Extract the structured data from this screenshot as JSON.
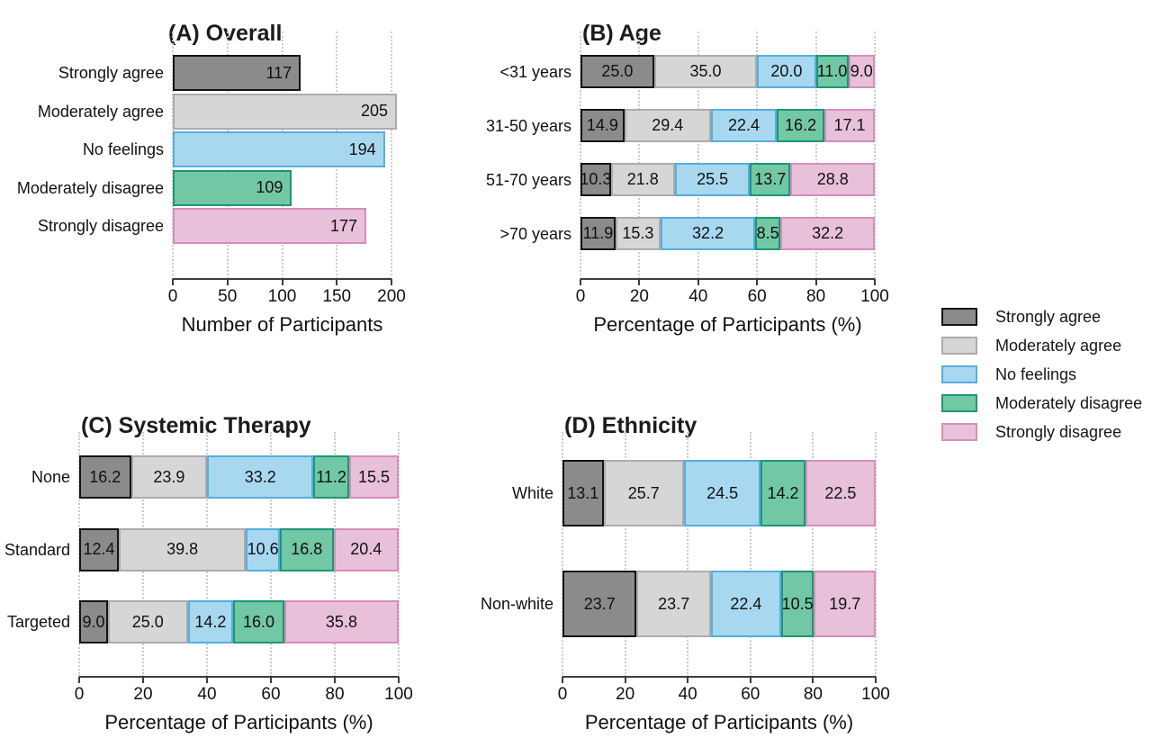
{
  "figure": {
    "background": "#ffffff",
    "levels": [
      {
        "name": "Strongly agree",
        "fill": "#8b8b8b",
        "stroke": "#141414"
      },
      {
        "name": "Moderately agree",
        "fill": "#d6d6d6",
        "stroke": "#ababab"
      },
      {
        "name": "No feelings",
        "fill": "#a8d8f0",
        "stroke": "#55aede"
      },
      {
        "name": "Moderately disagree",
        "fill": "#72c7a5",
        "stroke": "#1d9674"
      },
      {
        "name": "Strongly disagree",
        "fill": "#e8c0d9",
        "stroke": "#d48ebc"
      }
    ],
    "legend": {
      "position": "right",
      "items": [
        "Strongly agree",
        "Moderately agree",
        "No feelings",
        "Moderately disagree",
        "Strongly disagree"
      ]
    }
  },
  "chart_data": [
    {
      "id": "A",
      "type": "bar",
      "title": "(A) Overall",
      "xlabel": "Number of Participants",
      "categories": [
        "Strongly agree",
        "Moderately agree",
        "No feelings",
        "Moderately disagree",
        "Strongly disagree"
      ],
      "values": [
        117,
        205,
        194,
        109,
        177
      ],
      "value_labels": [
        "117",
        "205",
        "194",
        "109",
        "177"
      ],
      "xlim": [
        0,
        200
      ],
      "ticks": [
        0,
        50,
        100,
        150,
        200
      ],
      "grid": "dotted-vertical",
      "value_label_position": "inside-end"
    },
    {
      "id": "B",
      "type": "stacked_bar",
      "title": "(B) Age",
      "xlabel": "Percentage of Participants (%)",
      "categories": [
        "<31 years",
        "31-50 years",
        "51-70 years",
        ">70 years"
      ],
      "series": [
        {
          "name": "Strongly agree",
          "values": [
            25.0,
            14.9,
            10.3,
            11.9
          ]
        },
        {
          "name": "Moderately agree",
          "values": [
            35.0,
            29.4,
            21.8,
            15.3
          ]
        },
        {
          "name": "No feelings",
          "values": [
            20.0,
            22.4,
            25.5,
            32.2
          ]
        },
        {
          "name": "Moderately disagree",
          "values": [
            11.0,
            16.2,
            13.7,
            8.5
          ]
        },
        {
          "name": "Strongly disagree",
          "values": [
            9.0,
            17.1,
            28.8,
            32.2
          ]
        }
      ],
      "xlim": [
        0,
        100
      ],
      "ticks": [
        0,
        20,
        40,
        60,
        80,
        100
      ],
      "grid": "dotted-vertical",
      "value_label_position": "center",
      "value_decimals": 1
    },
    {
      "id": "C",
      "type": "stacked_bar",
      "title": "(C) Systemic Therapy",
      "xlabel": "Percentage of Participants (%)",
      "categories": [
        "None",
        "Standard",
        "Targeted"
      ],
      "series": [
        {
          "name": "Strongly agree",
          "values": [
            16.2,
            12.4,
            9.0
          ]
        },
        {
          "name": "Moderately agree",
          "values": [
            23.9,
            39.8,
            25.0
          ]
        },
        {
          "name": "No feelings",
          "values": [
            33.2,
            10.6,
            14.2
          ]
        },
        {
          "name": "Moderately disagree",
          "values": [
            11.2,
            16.8,
            16.0
          ]
        },
        {
          "name": "Strongly disagree",
          "values": [
            15.5,
            20.4,
            35.8
          ]
        }
      ],
      "xlim": [
        0,
        100
      ],
      "ticks": [
        0,
        20,
        40,
        60,
        80,
        100
      ],
      "grid": "dotted-vertical",
      "value_label_position": "center",
      "value_decimals": 1
    },
    {
      "id": "D",
      "type": "stacked_bar",
      "title": "(D) Ethnicity",
      "xlabel": "Percentage of Participants (%)",
      "categories": [
        "White",
        "Non-white"
      ],
      "series": [
        {
          "name": "Strongly agree",
          "values": [
            13.1,
            23.7
          ]
        },
        {
          "name": "Moderately agree",
          "values": [
            25.7,
            23.7
          ]
        },
        {
          "name": "No feelings",
          "values": [
            24.5,
            22.4
          ]
        },
        {
          "name": "Moderately disagree",
          "values": [
            14.2,
            10.5
          ]
        },
        {
          "name": "Strongly disagree",
          "values": [
            22.5,
            19.7
          ]
        }
      ],
      "xlim": [
        0,
        100
      ],
      "ticks": [
        0,
        20,
        40,
        60,
        80,
        100
      ],
      "grid": "dotted-vertical",
      "value_label_position": "center",
      "value_decimals": 1
    }
  ]
}
